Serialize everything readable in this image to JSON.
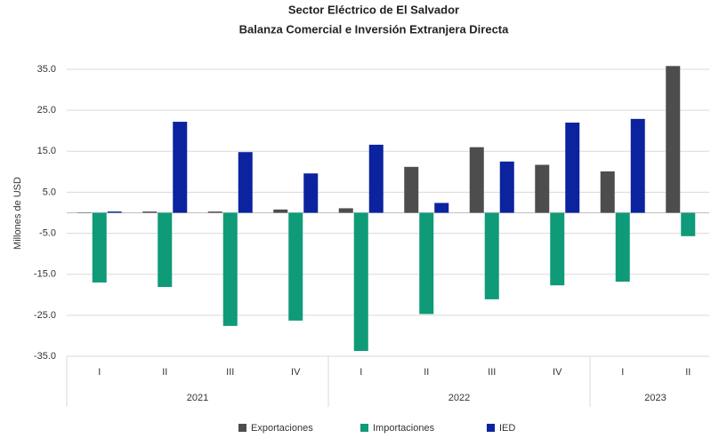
{
  "chart_data": {
    "type": "bar",
    "title": "Sector Eléctrico de El Salvador",
    "subtitle": "Balanza Comercial e Inversión Extranjera Directa",
    "y_label": "Millones de USD",
    "categories": [
      "I",
      "II",
      "III",
      "IV",
      "I",
      "II",
      "III",
      "IV",
      "I",
      "II"
    ],
    "groups": [
      {
        "label": "2021",
        "size": 4
      },
      {
        "label": "2022",
        "size": 4
      },
      {
        "label": "2023",
        "size": 2
      }
    ],
    "series": [
      {
        "name": "Exportaciones",
        "color": "#4d4d4d",
        "values": [
          0.1,
          0.3,
          0.3,
          0.8,
          1.1,
          11.2,
          16.0,
          11.7,
          10.1,
          35.8
        ]
      },
      {
        "name": "Importaciones",
        "color": "#0f9a78",
        "values": [
          -17.0,
          -18.1,
          -27.6,
          -26.3,
          -33.7,
          -24.7,
          -21.1,
          -17.7,
          -16.8,
          -5.7
        ]
      },
      {
        "name": "IED",
        "color": "#0b239e",
        "values": [
          0.3,
          22.2,
          14.8,
          9.6,
          16.6,
          2.4,
          12.5,
          22.0,
          22.9,
          null
        ]
      }
    ],
    "ylim": [
      -35,
      35
    ],
    "yticks": [
      {
        "value": 35,
        "label": "35.0"
      },
      {
        "value": 25,
        "label": "25.0"
      },
      {
        "value": 15,
        "label": "15.0"
      },
      {
        "value": 5,
        "label": "5.0"
      },
      {
        "value": -5,
        "label": "-5.0"
      },
      {
        "value": -15,
        "label": "-15.0"
      },
      {
        "value": -25,
        "label": "-25.0"
      },
      {
        "value": -35,
        "label": "-35.0"
      }
    ],
    "grid": true
  }
}
